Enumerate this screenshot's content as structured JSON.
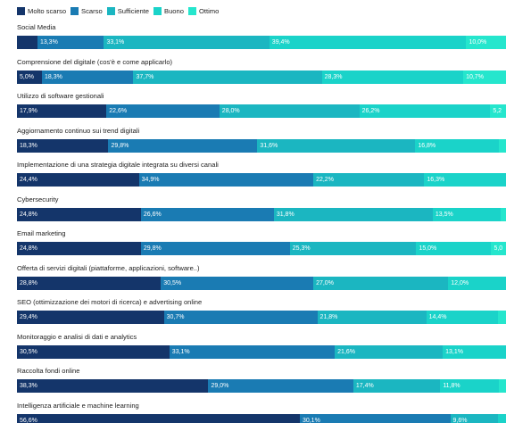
{
  "colors": {
    "Molto scarso": "#14356a",
    "Scarso": "#1a7bb3",
    "Sufficiente": "#1bb6c1",
    "Buono": "#1ad3c9",
    "Ottimo": "#25e6cd"
  },
  "legend": [
    {
      "label": "Molto scarso"
    },
    {
      "label": "Scarso"
    },
    {
      "label": "Sufficiente"
    },
    {
      "label": "Buono"
    },
    {
      "label": "Ottimo"
    }
  ],
  "chart_data": {
    "type": "bar",
    "orientation": "horizontal",
    "stacked": "percent",
    "title": "",
    "xlabel": "",
    "ylabel": "",
    "legend_position": "top-left",
    "grid": false,
    "unit": "%",
    "categories": [
      "Social Media",
      "Comprensione del digitale (cos'è e come applicarlo)",
      "Utilizzo di software gestionali",
      "Aggiornamento continuo sui trend digitali",
      "Implementazione di una strategia digitale integrata su diversi canali",
      "Cybersecurity",
      "Email marketing",
      "Offerta di servizi digitali (piattaforme, applicazioni, software..)",
      "SEO (ottimizzazione dei motori di ricerca) e advertising online",
      "Monitoraggio e analisi di dati e analytics",
      "Raccolta fondi online",
      "Intelligenza artificiale e machine learning"
    ],
    "series": [
      {
        "name": "Molto scarso",
        "values": [
          4.1,
          5.0,
          17.9,
          18.3,
          24.4,
          24.8,
          24.8,
          28.8,
          29.4,
          30.5,
          38.3,
          56.6
        ],
        "labels": [
          "",
          "5,0%",
          "17,9%",
          "18,3%",
          "24,4%",
          "24,8%",
          "24,8%",
          "28,8%",
          "29,4%",
          "30,5%",
          "38,3%",
          "56,6%"
        ]
      },
      {
        "name": "Scarso",
        "values": [
          13.3,
          18.3,
          22.6,
          29.8,
          34.9,
          26.6,
          29.8,
          30.5,
          30.7,
          33.1,
          29.0,
          30.1
        ],
        "labels": [
          "13,3%",
          "18,3%",
          "22,6%",
          "29,8%",
          "34,9%",
          "26,6%",
          "29,8%",
          "30,5%",
          "30,7%",
          "33,1%",
          "29,0%",
          "30,1%"
        ]
      },
      {
        "name": "Sufficiente",
        "values": [
          33.1,
          37.7,
          28.0,
          31.6,
          22.2,
          31.8,
          25.3,
          27.0,
          21.8,
          21.6,
          17.4,
          9.6
        ],
        "labels": [
          "33,1%",
          "37,7%",
          "28,0%",
          "31,6%",
          "22,2%",
          "31,8%",
          "25,3%",
          "27,0%",
          "21,8%",
          "21,6%",
          "17,4%",
          "9,6%"
        ]
      },
      {
        "name": "Buono",
        "values": [
          39.4,
          28.3,
          26.2,
          16.8,
          16.3,
          13.5,
          15.0,
          12.0,
          14.4,
          13.1,
          11.8,
          3.0
        ],
        "labels": [
          "39,4%",
          "28,3%",
          "26,2%",
          "16,8%",
          "16,3%",
          "13,5%",
          "15,0%",
          "12,0%",
          "14,4%",
          "13,1%",
          "11,8%",
          ""
        ]
      },
      {
        "name": "Ottimo",
        "values": [
          10.0,
          10.7,
          5.2,
          3.5,
          2.2,
          3.3,
          5.0,
          1.7,
          3.7,
          1.7,
          3.5,
          0.7
        ],
        "labels": [
          "10,0%",
          "10,7%",
          "5,2",
          "",
          "",
          "",
          "5,0",
          "",
          "",
          "",
          "",
          ""
        ]
      }
    ],
    "xlim": [
      0,
      100
    ]
  }
}
